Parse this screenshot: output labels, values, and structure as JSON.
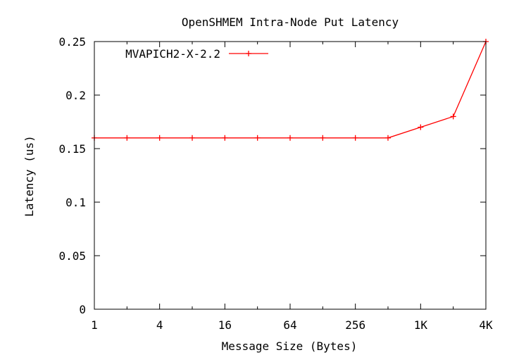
{
  "chart_data": {
    "type": "line",
    "title": "OpenSHMEM Intra-Node Put Latency",
    "xlabel": "Message Size (Bytes)",
    "ylabel": "Latency (us)",
    "x_scale": "log2",
    "x": [
      1,
      2,
      4,
      8,
      16,
      32,
      64,
      128,
      256,
      512,
      1024,
      2048,
      4096
    ],
    "xlim": [
      1,
      4096
    ],
    "x_ticks": [
      1,
      4,
      16,
      64,
      256,
      1024,
      4096
    ],
    "x_tick_labels": [
      "1",
      "4",
      "16",
      "64",
      "256",
      "1K",
      "4K"
    ],
    "ylim": [
      0,
      0.25
    ],
    "y_ticks": [
      0,
      0.05,
      0.1,
      0.15,
      0.2,
      0.25
    ],
    "y_tick_labels": [
      "0",
      "0.05",
      "0.1",
      "0.15",
      "0.2",
      "0.25"
    ],
    "grid": false,
    "legend_position": "top-left",
    "series": [
      {
        "name": "MVAPICH2-X-2.2",
        "color": "#ff0000",
        "marker": "plus",
        "values": [
          0.16,
          0.16,
          0.16,
          0.16,
          0.16,
          0.16,
          0.16,
          0.16,
          0.16,
          0.16,
          0.17,
          0.18,
          0.25
        ]
      }
    ]
  }
}
